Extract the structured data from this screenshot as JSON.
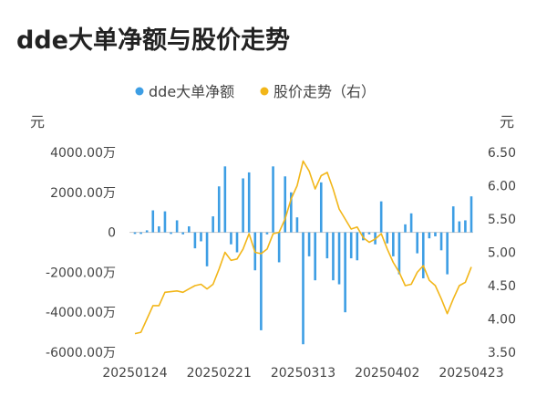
{
  "title": "dde大单净额与股价走势",
  "colors": {
    "bar": "#3d9ee4",
    "line": "#f2b619",
    "axis": "#cccccc",
    "text": "#444444"
  },
  "chart_data": {
    "type": "bar+line",
    "title": "dde大单净额与股价走势",
    "legend_position": "top-center",
    "grid": false,
    "left_unit": "元",
    "right_unit": "元",
    "left_axis": {
      "ylim": [
        -6000,
        4000
      ],
      "ticks": [
        4000,
        2000,
        0,
        -2000,
        -4000,
        -6000
      ],
      "tick_labels": [
        "4000.00万",
        "2000.00万",
        "0",
        "-2000.00万",
        "-4000.00万",
        "-6000.00万"
      ]
    },
    "right_axis": {
      "ylim": [
        3.5,
        6.5
      ],
      "ticks": [
        6.5,
        6.0,
        5.5,
        5.0,
        4.5,
        4.0,
        3.5
      ],
      "tick_labels": [
        "6.50",
        "6.00",
        "5.50",
        "5.00",
        "4.50",
        "4.00",
        "3.50"
      ]
    },
    "x_tick_labels": [
      "20250124",
      "20250221",
      "20250313",
      "20250402",
      "20250423"
    ],
    "series": [
      {
        "name": "dde大单净额",
        "type": "bar",
        "axis": "left",
        "unit": "万",
        "values": [
          -80,
          -80,
          100,
          1100,
          300,
          1050,
          -80,
          600,
          -100,
          300,
          -800,
          -450,
          -1700,
          800,
          2300,
          3300,
          -600,
          -1000,
          2700,
          3000,
          -1900,
          -4900,
          -100,
          3300,
          -1500,
          2800,
          2000,
          750,
          -5600,
          -1200,
          -2400,
          2500,
          -1300,
          -2400,
          -2600,
          -4000,
          -1300,
          -1400,
          -400,
          -100,
          -600,
          1550,
          -550,
          -1200,
          -2100,
          400,
          950,
          -1050,
          -2300,
          -300,
          -200,
          -900,
          -2100,
          1300,
          550,
          600,
          1800
        ]
      },
      {
        "name": "股价走势（右）",
        "type": "line",
        "axis": "right",
        "unit": "元",
        "values": [
          3.78,
          3.8,
          4.0,
          4.2,
          4.2,
          4.4,
          4.41,
          4.42,
          4.4,
          4.45,
          4.5,
          4.52,
          4.45,
          4.52,
          4.75,
          5.0,
          4.88,
          4.9,
          5.05,
          5.28,
          5.0,
          4.98,
          5.05,
          5.28,
          5.3,
          5.5,
          5.8,
          6.0,
          6.37,
          6.22,
          5.95,
          6.15,
          6.2,
          5.95,
          5.65,
          5.5,
          5.35,
          5.38,
          5.22,
          5.15,
          5.2,
          5.28,
          5.05,
          4.85,
          4.7,
          4.5,
          4.52,
          4.7,
          4.8,
          4.58,
          4.5,
          4.3,
          4.08,
          4.3,
          4.5,
          4.55,
          4.78
        ]
      }
    ]
  }
}
